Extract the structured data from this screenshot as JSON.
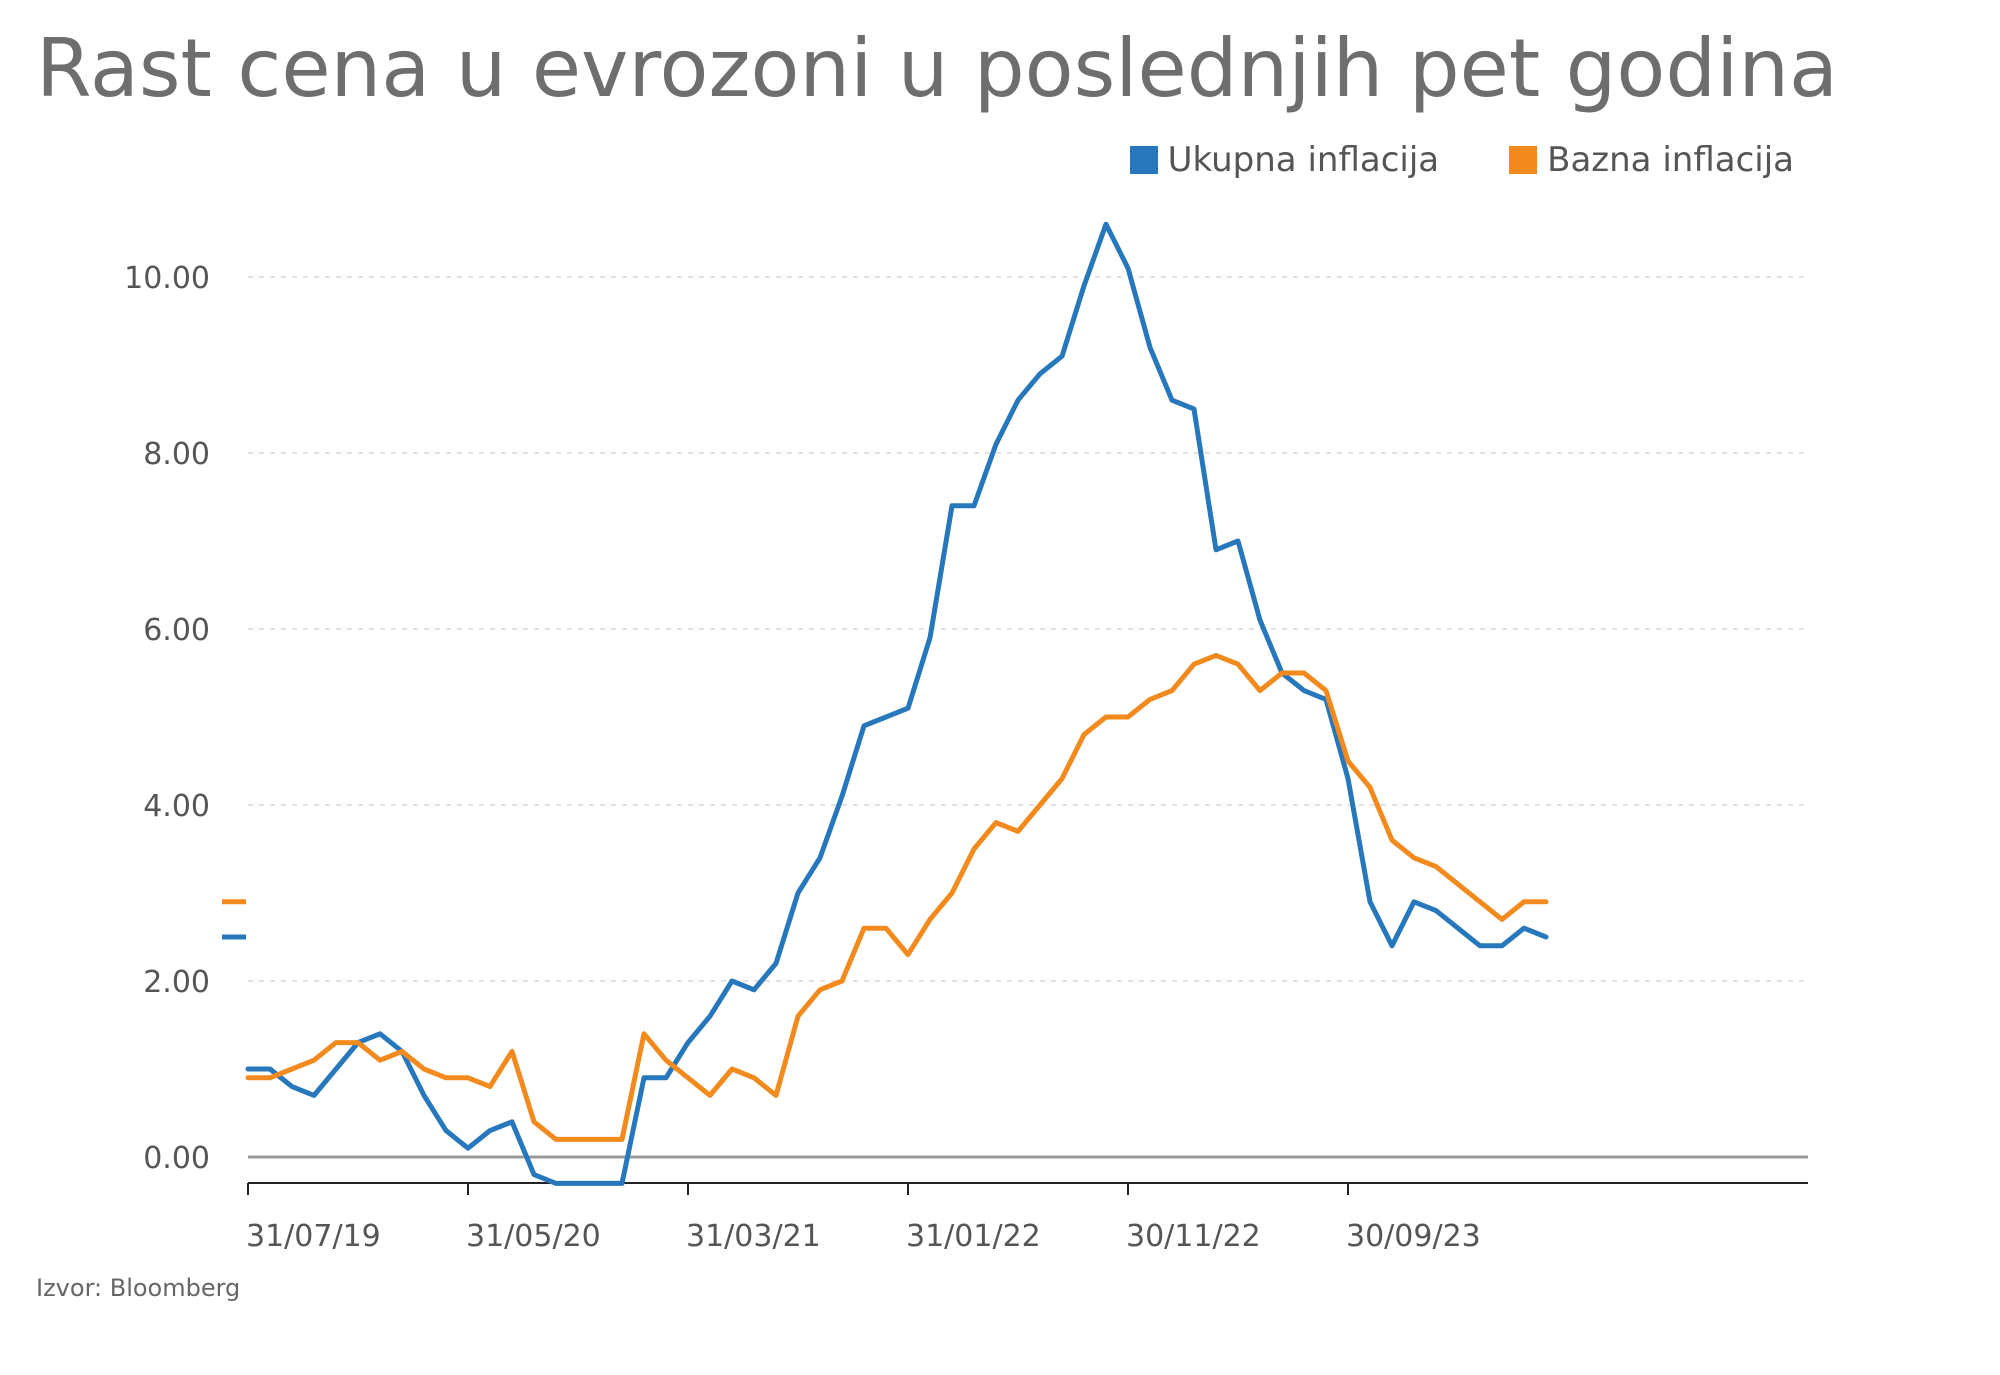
{
  "title": "Rast cena u evrozoni u poslednjih pet godina",
  "source": "Izvor: Bloomberg",
  "colors": {
    "ukupna": "#2677bb",
    "bazna": "#f28a1e",
    "grid": "#d9d9d9",
    "axis": "#222222",
    "tick_text": "#555555"
  },
  "chart_data": {
    "type": "line",
    "title": "Rast cena u evrozoni u poslednjih pet godina",
    "xlabel": "",
    "ylabel": "",
    "ylim": [
      -0.3,
      10.8
    ],
    "grid": true,
    "legend_position": "top-right",
    "y_ticks": [
      "0.00",
      "2.00",
      "4.00",
      "6.00",
      "8.00",
      "10.00"
    ],
    "y_tick_values": [
      0,
      2,
      4,
      6,
      8,
      10
    ],
    "x_start": "2019-07",
    "x_tick_labels": [
      "31/07/19",
      "31/05/20",
      "31/03/21",
      "31/01/22",
      "30/11/22",
      "30/09/23"
    ],
    "x_tick_months": [
      "2019-07",
      "2020-05",
      "2021-03",
      "2022-01",
      "2022-11",
      "2023-09"
    ],
    "series": [
      {
        "name": "Ukupna inflacija",
        "color": "#2677bb",
        "values": [
          1.0,
          1.0,
          0.8,
          0.7,
          1.0,
          1.3,
          1.4,
          1.2,
          0.7,
          0.3,
          0.1,
          0.3,
          0.4,
          -0.2,
          -0.3,
          -0.3,
          -0.3,
          -0.3,
          0.9,
          0.9,
          1.3,
          1.6,
          2.0,
          1.9,
          2.2,
          3.0,
          3.4,
          4.1,
          4.9,
          5.0,
          5.1,
          5.9,
          7.4,
          7.4,
          8.1,
          8.6,
          8.9,
          9.1,
          9.9,
          10.6,
          10.1,
          9.2,
          8.6,
          8.5,
          6.9,
          7.0,
          6.1,
          5.5,
          5.3,
          5.2,
          4.3,
          2.9,
          2.4,
          2.9,
          2.8,
          2.6,
          2.4,
          2.4,
          2.6,
          2.5
        ],
        "last_value_marker": 2.5
      },
      {
        "name": "Bazna inflacija",
        "color": "#f28a1e",
        "values": [
          0.9,
          0.9,
          1.0,
          1.1,
          1.3,
          1.3,
          1.1,
          1.2,
          1.0,
          0.9,
          0.9,
          0.8,
          1.2,
          0.4,
          0.2,
          0.2,
          0.2,
          0.2,
          1.4,
          1.1,
          0.9,
          0.7,
          1.0,
          0.9,
          0.7,
          1.6,
          1.9,
          2.0,
          2.6,
          2.6,
          2.3,
          2.7,
          3.0,
          3.5,
          3.8,
          3.7,
          4.0,
          4.3,
          4.8,
          5.0,
          5.0,
          5.2,
          5.3,
          5.6,
          5.7,
          5.6,
          5.3,
          5.5,
          5.5,
          5.3,
          4.5,
          4.2,
          3.6,
          3.4,
          3.3,
          3.1,
          2.9,
          2.7,
          2.9,
          2.9
        ],
        "last_value_marker": 2.9
      }
    ]
  }
}
